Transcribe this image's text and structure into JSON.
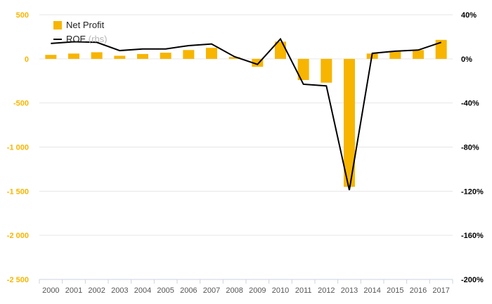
{
  "chart_data": {
    "type": "bar+line",
    "title": "",
    "categories": [
      "2000",
      "2001",
      "2002",
      "2003",
      "2004",
      "2005",
      "2006",
      "2007",
      "2008",
      "2009",
      "2010",
      "2011",
      "2012",
      "2013",
      "2014",
      "2015",
      "2016",
      "2017"
    ],
    "series": [
      {
        "name": "Net Profit",
        "type": "bar",
        "axis": "left",
        "color": "#F7B500",
        "values": [
          45,
          60,
          75,
          35,
          55,
          70,
          100,
          125,
          20,
          -90,
          195,
          -240,
          -270,
          -1450,
          60,
          90,
          100,
          215
        ]
      },
      {
        "name": "ROE",
        "name_suffix": "(rhs)",
        "type": "line",
        "axis": "right",
        "color": "#000000",
        "values": [
          14,
          15.5,
          15,
          7.5,
          9,
          9,
          12,
          13.5,
          2,
          -5,
          18,
          -23,
          -24.5,
          -119,
          5,
          7,
          8,
          15
        ]
      }
    ],
    "y_left": {
      "ylim": [
        -2500,
        500
      ],
      "ticks": [
        500,
        0,
        -500,
        -1000,
        -1500,
        -2000,
        -2500
      ],
      "tick_labels": [
        "500",
        "0",
        "-500",
        "-1 000",
        "-1 500",
        "-2 000",
        "-2 500"
      ],
      "tick_color": "#F7B500"
    },
    "y_right": {
      "ylim": [
        -200,
        40
      ],
      "ticks": [
        40,
        0,
        -40,
        -80,
        -120,
        -160,
        -200
      ],
      "tick_labels": [
        "40%",
        "0%",
        "-40%",
        "-80%",
        "-120%",
        "-160%",
        "-200%"
      ]
    },
    "grid": true,
    "legend_position": "top-left"
  }
}
